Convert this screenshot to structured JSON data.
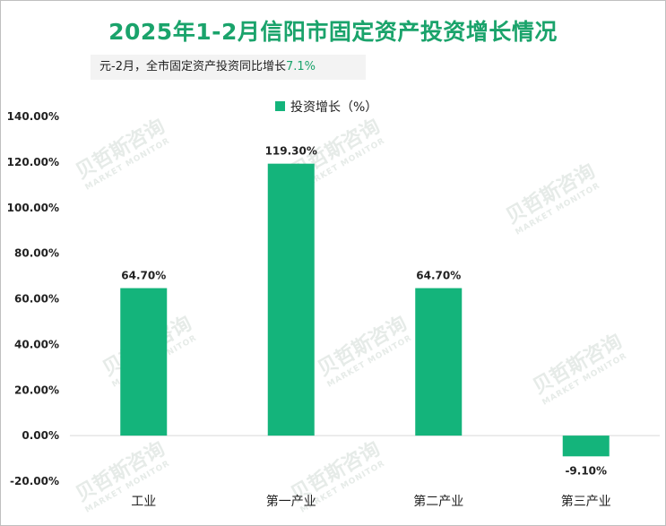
{
  "title": "2025年1-2月信阳市固定资产投资增长情况",
  "subtitle": {
    "prefix": "元-2月，全市固定资产投资同比增长",
    "value": "7.1%"
  },
  "watermark": {
    "brand": "贝哲斯咨询",
    "sub": "MARKET MONITOR"
  },
  "colors": {
    "bar": "#14b47b",
    "title": "#1aa36b"
  },
  "chart_data": {
    "type": "bar",
    "categories": [
      "工业",
      "第一产业",
      "第二产业",
      "第三产业"
    ],
    "series": [
      {
        "name": "投资增长（%）",
        "values": [
          64.7,
          119.3,
          64.7,
          -9.1
        ],
        "data_labels": [
          "64.70%",
          "119.30%",
          "64.70%",
          "-9.10%"
        ]
      }
    ],
    "ylim": [
      -20,
      140
    ],
    "yticks": [
      -20,
      0,
      20,
      40,
      60,
      80,
      100,
      120,
      140
    ],
    "ytick_labels": [
      "-20.00%",
      "0.00%",
      "20.00%",
      "40.00%",
      "60.00%",
      "80.00%",
      "100.00%",
      "120.00%",
      "140.00%"
    ],
    "legend": "top-center",
    "grid": false
  }
}
